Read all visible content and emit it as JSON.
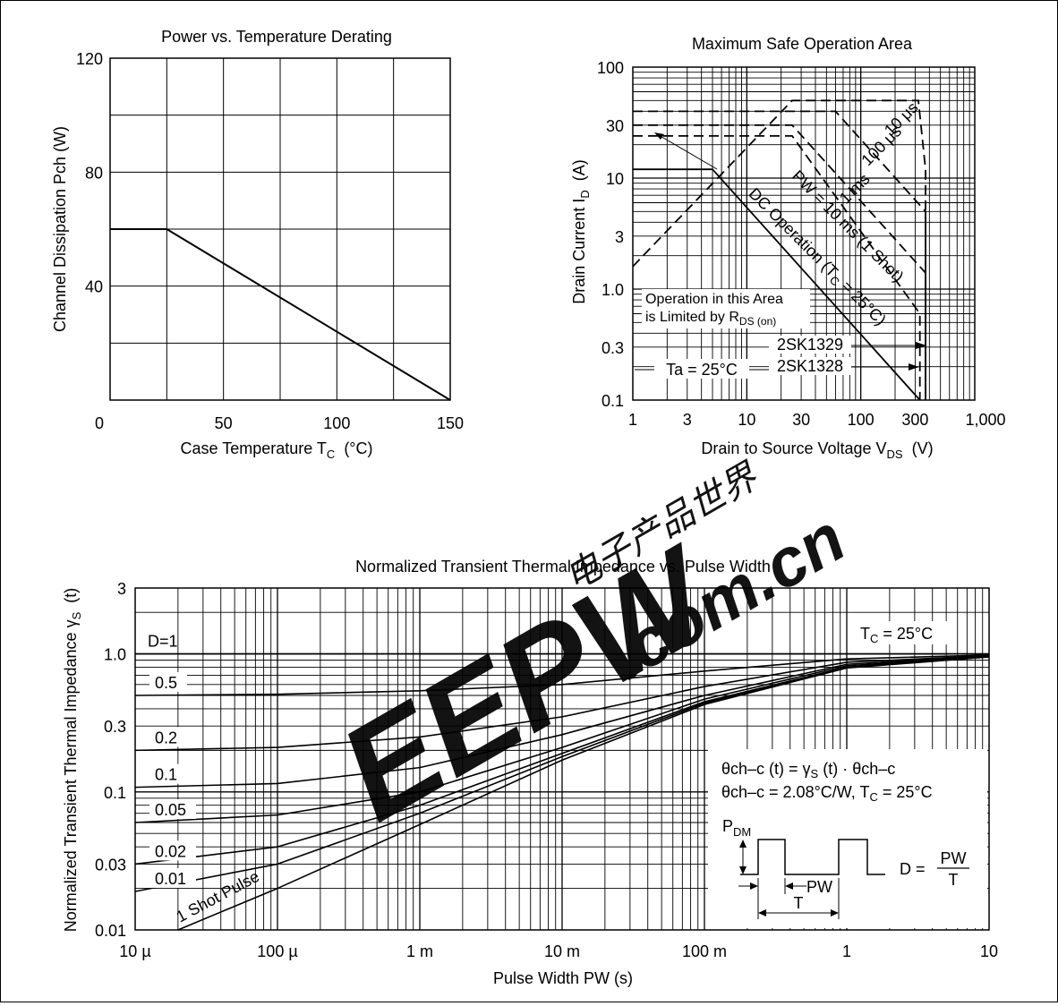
{
  "chart_data": [
    {
      "id": "derating",
      "type": "line",
      "title": "Power vs. Temperature Derating",
      "xlabel_main": "Case Temperature T",
      "xlabel_sub": "C",
      "xlabel_unit": "(°C)",
      "ylabel": "Channel Dissipation Pch (W)",
      "xlim": [
        0,
        150
      ],
      "ylim": [
        0,
        120
      ],
      "xticks": [
        0,
        50,
        100,
        150
      ],
      "xtick_labels": [
        "0",
        "50",
        "100",
        "150"
      ],
      "yticks": [
        40,
        80,
        120
      ],
      "ytick_labels": [
        "40",
        "80",
        "120"
      ],
      "grid": true,
      "series": [
        {
          "x": [
            0,
            25,
            150
          ],
          "y": [
            60,
            60,
            0
          ]
        }
      ]
    },
    {
      "id": "soa",
      "type": "line",
      "scale": "log-log",
      "title": "Maximum Safe Operation Area",
      "xlabel_main": "Drain to Source Voltage V",
      "xlabel_sub": "DS",
      "xlabel_unit": "(V)",
      "ylabel_main": "Drain Current I",
      "ylabel_sub": "D",
      "ylabel_unit": "(A)",
      "xlim": [
        1,
        1000
      ],
      "ylim": [
        0.1,
        100
      ],
      "xtick_labels": [
        "1",
        "3",
        "10",
        "30",
        "100",
        "300",
        "1,000"
      ],
      "ytick_labels": [
        "0.1",
        "0.3",
        "1.0",
        "3",
        "10",
        "30",
        "100"
      ],
      "grid": true,
      "series": [
        {
          "name": "10 μs",
          "style": "dashed",
          "x": [
            1,
            25,
            320,
            370,
            370
          ],
          "y": [
            1.6,
            50,
            50,
            12,
            0.1
          ]
        },
        {
          "name": "100 μs",
          "style": "dashed",
          "x": [
            1,
            60,
            370,
            370
          ],
          "y": [
            40,
            40,
            5,
            0.1
          ]
        },
        {
          "name": "1 ms",
          "style": "dashed",
          "x": [
            1,
            25,
            370,
            370
          ],
          "y": [
            30,
            30,
            1.4,
            0.1
          ]
        },
        {
          "name": "PW = 10 ms (1 Shot)",
          "style": "dashed",
          "x": [
            1,
            25,
            330,
            330
          ],
          "y": [
            24,
            24,
            0.6,
            0.1
          ]
        },
        {
          "name": "DC Operation (T = 25°C)",
          "style": "solid",
          "x": [
            1,
            5,
            330
          ],
          "y": [
            12,
            12,
            0.1
          ]
        }
      ],
      "annotations": {
        "l10us": "10 μs",
        "l100us": "100 μs",
        "l1ms": "1 ms",
        "lpw": "PW = 10 ms (1 Shot)",
        "ldc_a": "DC Operation (T",
        "ldc_sub": "C",
        "ldc_b": " = 25°C)",
        "note_line1": "Operation in this Area",
        "note_line2": "is Limited by R",
        "note_sub": "DS (on)",
        "part1": "2SK1329",
        "part2": "2SK1328",
        "ta": "Ta = 25°C"
      }
    },
    {
      "id": "thermal",
      "type": "line",
      "scale": "log-log",
      "title": "Normalized Transient Thermal Impedance vs. Pulse Width",
      "xlabel": "Pulse Width PW (s)",
      "ylabel_main": "Normalized Transient Thermal Impedance γ",
      "ylabel_sub": "S",
      "ylabel_unit": "(t)",
      "xlim": [
        1e-05,
        10
      ],
      "ylim": [
        0.01,
        3
      ],
      "xtick_labels": [
        "10 µ",
        "100 µ",
        "1 m",
        "10 m",
        "100 m",
        "1",
        "10"
      ],
      "ytick_labels": [
        "0.01",
        "0.03",
        "0.1",
        "0.3",
        "1.0",
        "3"
      ],
      "grid": true,
      "series": [
        {
          "name": "D=1",
          "x": [
            1e-05,
            10
          ],
          "y": [
            1.0,
            1.0
          ]
        },
        {
          "name": "0.5",
          "x": [
            1e-05,
            0.0001,
            0.001,
            0.01,
            0.1,
            1,
            10
          ],
          "y": [
            0.5,
            0.51,
            0.54,
            0.6,
            0.75,
            0.92,
            0.98
          ]
        },
        {
          "name": "0.2",
          "x": [
            1e-05,
            0.0001,
            0.001,
            0.01,
            0.1,
            1,
            10
          ],
          "y": [
            0.2,
            0.21,
            0.25,
            0.35,
            0.58,
            0.87,
            0.97
          ]
        },
        {
          "name": "0.1",
          "x": [
            1e-05,
            0.0001,
            0.001,
            0.01,
            0.1,
            1,
            10
          ],
          "y": [
            0.108,
            0.115,
            0.15,
            0.26,
            0.5,
            0.84,
            0.97
          ]
        },
        {
          "name": "0.05",
          "x": [
            1e-05,
            0.0001,
            0.001,
            0.01,
            0.1,
            1,
            10
          ],
          "y": [
            0.06,
            0.068,
            0.1,
            0.21,
            0.47,
            0.82,
            0.96
          ]
        },
        {
          "name": "0.02",
          "x": [
            1e-05,
            0.0001,
            0.001,
            0.01,
            0.1,
            1,
            10
          ],
          "y": [
            0.03,
            0.04,
            0.08,
            0.19,
            0.45,
            0.8,
            0.96
          ]
        },
        {
          "name": "0.01",
          "x": [
            1e-05,
            0.0001,
            0.001,
            0.01,
            0.1,
            1,
            10
          ],
          "y": [
            0.019,
            0.03,
            0.07,
            0.18,
            0.44,
            0.8,
            0.95
          ]
        },
        {
          "name": "1 Shot Pulse",
          "x": [
            2e-05,
            0.0001,
            0.001,
            0.01,
            0.1,
            1,
            10
          ],
          "y": [
            0.01,
            0.02,
            0.058,
            0.17,
            0.43,
            0.79,
            0.95
          ]
        }
      ],
      "annotations": {
        "tc_a": "T",
        "tc_sub": "C",
        "tc_b": " = 25°C",
        "eq1": "θch–c (t) = γ",
        "eq1_sub": "S",
        "eq1_b": " (t) · θch–c",
        "eq2": "θch–c = 2.08°C/W, T",
        "eq2_sub": "C",
        "eq2_b": " = 25°C",
        "pdm": "P",
        "pdm_sub": "DM",
        "pw": "PW",
        "t": "T",
        "d_eq": "D =",
        "d_num": "PW",
        "d_den": "T"
      }
    }
  ],
  "watermark": {
    "text": "EEPW",
    "domain": ".com.cn",
    "chinese": "电子产品世界",
    "color": "#e8302a"
  }
}
